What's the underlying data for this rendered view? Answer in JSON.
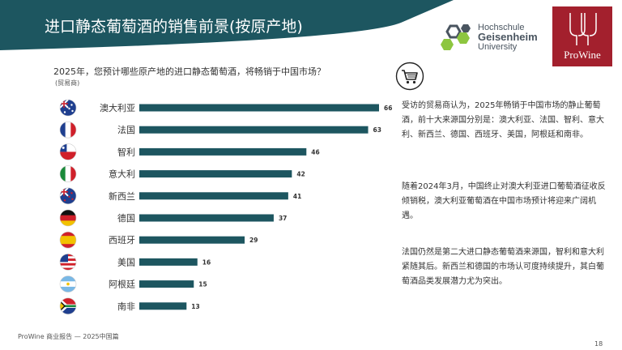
{
  "header": {
    "title": "进口静态葡萄酒的销售前景(按原产地)"
  },
  "question": "2025年，您预计哪些原产地的进口静态葡萄酒，将畅销于中国市场？",
  "unit_label": "(贸易商)",
  "logos": {
    "geisenheim": {
      "line1": "Hochschule",
      "line2": "Geisenheim",
      "line3": "University"
    },
    "prowine": {
      "text": "ProWine"
    }
  },
  "icons": {
    "cart": "shopping-cart-icon"
  },
  "colors": {
    "header_bg": "#1d5660",
    "bar": "#1d5660",
    "prowine_red": "#a3202d"
  },
  "chart_data": {
    "type": "bar",
    "orientation": "horizontal",
    "categories": [
      "澳大利亚",
      "法国",
      "智利",
      "意大利",
      "新西兰",
      "德国",
      "西班牙",
      "美国",
      "阿根廷",
      "南非"
    ],
    "values": [
      66,
      63,
      46,
      42,
      41,
      37,
      29,
      16,
      15,
      13
    ],
    "flags": [
      "australia-flag-icon",
      "france-flag-icon",
      "chile-flag-icon",
      "italy-flag-icon",
      "new-zealand-flag-icon",
      "germany-flag-icon",
      "spain-flag-icon",
      "usa-flag-icon",
      "argentina-flag-icon",
      "south-africa-flag-icon"
    ],
    "title": "",
    "xlabel": "",
    "ylabel": "",
    "xlim": [
      0,
      66
    ],
    "grid": false,
    "data_labels": true
  },
  "paragraphs": [
    "受访的贸易商认为，2025年畅销于中国市场的静止葡萄酒，前十大来源国分别是：澳大利亚、法国、智利、意大利、新西兰、德国、西班牙、美国，阿根廷和南非。",
    "随着2024年3月，中国终止对澳大利亚进口葡萄酒征收反倾销税，澳大利亚葡萄酒在中国市场预计将迎来广阔机遇。",
    "法国仍然是第二大进口静态葡萄酒来源国，智利和意大利紧随其后。新西兰和德国的市场认可度持续提升，其白葡萄酒品类发展潜力尤为突出。"
  ],
  "footer": {
    "text": "ProWine 商业报告 — 2025中国篇",
    "page": "18"
  }
}
